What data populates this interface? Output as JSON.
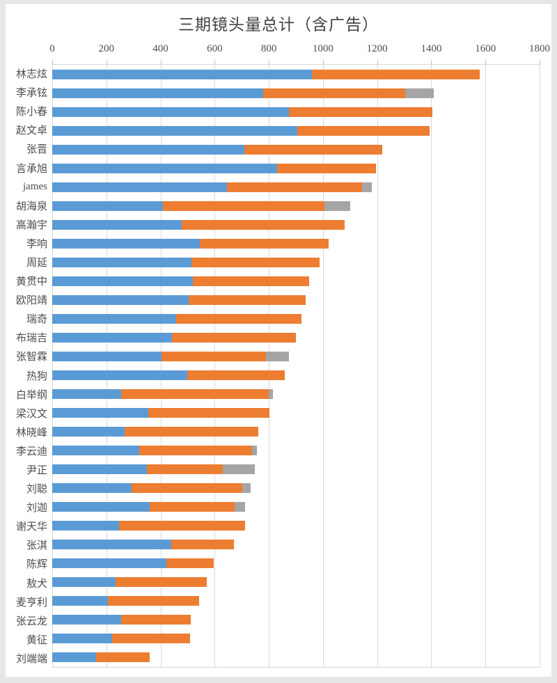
{
  "title": "三期镜头量总计（含广告）",
  "colors": {
    "series_blue": "#5b9bd5",
    "series_orange": "#ed7d31",
    "series_gray": "#a5a5a5",
    "gridline": "#d9d9d9",
    "axis_text": "#4d4d4d",
    "title_text": "#3f3f3f",
    "page_background": "#e7e7e7",
    "chart_background": "#ffffff"
  },
  "chart_data": {
    "type": "bar",
    "orientation": "horizontal",
    "stacked": true,
    "title": "三期镜头量总计（含广告）",
    "xlabel": "",
    "ylabel": "",
    "xlim": [
      0,
      1800
    ],
    "x_ticks": [
      0,
      200,
      400,
      600,
      800,
      1000,
      1200,
      1400,
      1600,
      1800
    ],
    "grid": true,
    "legend_position": "none",
    "categories": [
      "林志炫",
      "李承铉",
      "陈小春",
      "赵文卓",
      "张晋",
      "言承旭",
      "james",
      "胡海泉",
      "高瀚宇",
      "李响",
      "周延",
      "黄贯中",
      "欧阳靖",
      "瑞奇",
      "布瑞吉",
      "张智霖",
      "热狗",
      "白举纲",
      "梁汉文",
      "林晓峰",
      "李云迪",
      "尹正",
      "刘聪",
      "刘迦",
      "谢天华",
      "张淇",
      "陈辉",
      "敖犬",
      "麦亨利",
      "张云龙",
      "黄征",
      "刘端端"
    ],
    "series": [
      {
        "name": "segment-1-blue",
        "color": "#5b9bd5",
        "values": [
          960,
          780,
          875,
          905,
          710,
          830,
          645,
          410,
          478,
          545,
          515,
          520,
          505,
          458,
          442,
          403,
          500,
          255,
          356,
          267,
          321,
          350,
          294,
          359,
          247,
          439,
          422,
          235,
          205,
          255,
          222,
          161
        ]
      },
      {
        "name": "segment-2-orange",
        "color": "#ed7d31",
        "values": [
          620,
          525,
          530,
          490,
          510,
          365,
          500,
          595,
          602,
          475,
          473,
          428,
          430,
          462,
          458,
          386,
          358,
          544,
          447,
          493,
          418,
          280,
          407,
          316,
          465,
          233,
          175,
          336,
          337,
          257,
          287,
          199
        ]
      },
      {
        "name": "segment-3-gray",
        "color": "#a5a5a5",
        "values": [
          0,
          105,
          0,
          0,
          0,
          0,
          35,
          95,
          0,
          0,
          0,
          0,
          0,
          0,
          0,
          85,
          0,
          17,
          0,
          0,
          16,
          119,
          31,
          37,
          0,
          0,
          0,
          0,
          0,
          0,
          0,
          0
        ]
      }
    ],
    "totals": [
      1580,
      1410,
      1405,
      1395,
      1220,
      1195,
      1180,
      1100,
      1080,
      1020,
      988,
      948,
      935,
      920,
      900,
      874,
      858,
      816,
      803,
      760,
      755,
      749,
      732,
      712,
      712,
      672,
      597,
      571,
      542,
      512,
      509,
      360
    ]
  }
}
